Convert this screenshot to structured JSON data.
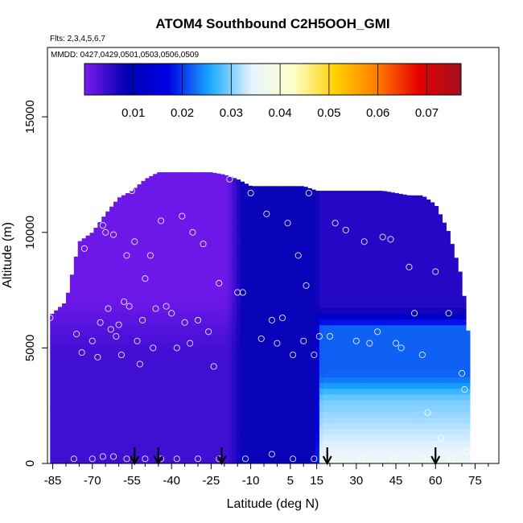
{
  "chart_data": {
    "type": "heatmap",
    "title": "ATOM4 Southbound C2H5OOH_GMI",
    "flights_note": "Flts: 2,3,4,5,6,7",
    "dates_note": "MMDD: 0427,0429,0501,0503,0506,0509",
    "xlabel": "Latitude (deg N)",
    "ylabel": "Altitude (m)",
    "xlim": [
      -87,
      84
    ],
    "ylim": [
      0,
      18000
    ],
    "x_ticks": [
      -85,
      -70,
      -55,
      -40,
      -25,
      -10,
      5,
      15,
      30,
      45,
      60,
      75
    ],
    "x_minor_ticks": [
      -80,
      -75,
      -65,
      -60,
      -50,
      -45,
      -35,
      -30,
      -20,
      -15,
      -5,
      0,
      10,
      20,
      25,
      35,
      40,
      50,
      55,
      65,
      70,
      80
    ],
    "y_ticks": [
      0,
      5000,
      10000,
      15000
    ],
    "colorbar": {
      "min": 0.0,
      "max": 0.077,
      "ticks": [
        0.01,
        0.02,
        0.03,
        0.04,
        0.05,
        0.06,
        0.07
      ],
      "tick_labels": [
        "0.01",
        "0.02",
        "0.03",
        "0.04",
        "0.05",
        "0.06",
        "0.07"
      ],
      "color_stops": [
        "#7b1bf0",
        "#0000b4",
        "#0000e6",
        "#1aaaff",
        "#e6f4ff",
        "#ffffc8",
        "#ffd000",
        "#ff7a00",
        "#e60000",
        "#a01020"
      ]
    },
    "grid": false,
    "curtain_latitudes": [
      -86,
      -80,
      -75,
      -70,
      -65,
      -60,
      -55,
      -50,
      -45,
      -40,
      -35,
      -30,
      -25,
      -20,
      -15,
      -10,
      -5,
      0,
      5,
      10,
      15,
      20,
      25,
      30,
      35,
      40,
      45,
      50,
      55,
      60,
      65,
      70,
      73
    ],
    "curtain_top_altitude_m": [
      6400,
      7000,
      9600,
      10000,
      10800,
      11500,
      11800,
      12300,
      12600,
      12600,
      12600,
      12600,
      12600,
      12500,
      12300,
      12000,
      12000,
      12000,
      12000,
      12000,
      11800,
      11800,
      11800,
      11800,
      11800,
      11800,
      11700,
      11600,
      11600,
      11200,
      10000,
      8000,
      5000
    ],
    "concentration_regimes": [
      {
        "name": "southern_upper",
        "lat_range": [
          -86,
          -20
        ],
        "alt_range": [
          6000,
          12600
        ],
        "value": 0.001
      },
      {
        "name": "southern_lower",
        "lat_range": [
          -86,
          -20
        ],
        "alt_range": [
          0,
          6000
        ],
        "value": 0.004
      },
      {
        "name": "tropical_column",
        "lat_range": [
          -20,
          15
        ],
        "alt_range": [
          0,
          12000
        ],
        "value": 0.008
      },
      {
        "name": "northern_upper",
        "lat_range": [
          15,
          73
        ],
        "alt_range": [
          6000,
          12000
        ],
        "value": 0.006
      },
      {
        "name": "northern_midtrop",
        "lat_range": [
          15,
          73
        ],
        "alt_range": [
          2500,
          6000
        ],
        "value": 0.022
      },
      {
        "name": "northern_boundary_layer",
        "lat_range": [
          15,
          73
        ],
        "alt_range": [
          0,
          2500
        ],
        "value": 0.036
      }
    ],
    "sample_points": [
      {
        "lat": -86,
        "alt": 6300
      },
      {
        "lat": -84,
        "alt": 9500
      },
      {
        "lat": -81,
        "alt": 9500
      },
      {
        "lat": -76,
        "alt": 5600
      },
      {
        "lat": -74,
        "alt": 4800
      },
      {
        "lat": -73,
        "alt": 9300
      },
      {
        "lat": -70,
        "alt": 5300
      },
      {
        "lat": -68,
        "alt": 4600
      },
      {
        "lat": -67,
        "alt": 6100
      },
      {
        "lat": -66,
        "alt": 10300
      },
      {
        "lat": -65,
        "alt": 10000
      },
      {
        "lat": -64,
        "alt": 6700
      },
      {
        "lat": -63,
        "alt": 5800
      },
      {
        "lat": -62,
        "alt": 9900
      },
      {
        "lat": -61,
        "alt": 5500
      },
      {
        "lat": -60,
        "alt": 6000
      },
      {
        "lat": -59,
        "alt": 4700
      },
      {
        "lat": -58,
        "alt": 7000
      },
      {
        "lat": -57,
        "alt": 9000
      },
      {
        "lat": -56,
        "alt": 6800
      },
      {
        "lat": -55,
        "alt": 11800
      },
      {
        "lat": -54,
        "alt": 9600
      },
      {
        "lat": -53,
        "alt": 5300
      },
      {
        "lat": -52,
        "alt": 4300
      },
      {
        "lat": -51,
        "alt": 6200
      },
      {
        "lat": -50,
        "alt": 8000
      },
      {
        "lat": -48,
        "alt": 9000
      },
      {
        "lat": -47,
        "alt": 5000
      },
      {
        "lat": -46,
        "alt": 6700
      },
      {
        "lat": -44,
        "alt": 10500
      },
      {
        "lat": -42,
        "alt": 6800
      },
      {
        "lat": -40,
        "alt": 6500
      },
      {
        "lat": -38,
        "alt": 5000
      },
      {
        "lat": -36,
        "alt": 10700
      },
      {
        "lat": -35,
        "alt": 6100
      },
      {
        "lat": -33,
        "alt": 5200
      },
      {
        "lat": -32,
        "alt": 10000
      },
      {
        "lat": -30,
        "alt": 6200
      },
      {
        "lat": -28,
        "alt": 9500
      },
      {
        "lat": -26,
        "alt": 5700
      },
      {
        "lat": -24,
        "alt": 4200
      },
      {
        "lat": -22,
        "alt": 7800
      },
      {
        "lat": -18,
        "alt": 12300
      },
      {
        "lat": -15,
        "alt": 7400
      },
      {
        "lat": -13,
        "alt": 7400
      },
      {
        "lat": -10,
        "alt": 11700
      },
      {
        "lat": -6,
        "alt": 5400
      },
      {
        "lat": -4,
        "alt": 10800
      },
      {
        "lat": -2,
        "alt": 6200
      },
      {
        "lat": 0,
        "alt": 5200
      },
      {
        "lat": 2,
        "alt": 6300
      },
      {
        "lat": 4,
        "alt": 10400
      },
      {
        "lat": 6,
        "alt": 4700
      },
      {
        "lat": 8,
        "alt": 9000
      },
      {
        "lat": 10,
        "alt": 5300
      },
      {
        "lat": 11,
        "alt": 7700
      },
      {
        "lat": 12,
        "alt": 11700
      },
      {
        "lat": 14,
        "alt": 4700
      },
      {
        "lat": 16,
        "alt": 5500
      },
      {
        "lat": 20,
        "alt": 5500
      },
      {
        "lat": 22,
        "alt": 10400
      },
      {
        "lat": 26,
        "alt": 10100
      },
      {
        "lat": 30,
        "alt": 5300
      },
      {
        "lat": 33,
        "alt": 9600
      },
      {
        "lat": 35,
        "alt": 5200
      },
      {
        "lat": 38,
        "alt": 5700
      },
      {
        "lat": 40,
        "alt": 9800
      },
      {
        "lat": 43,
        "alt": 9700
      },
      {
        "lat": 45,
        "alt": 5200
      },
      {
        "lat": 47,
        "alt": 5000
      },
      {
        "lat": 50,
        "alt": 8500
      },
      {
        "lat": 52,
        "alt": 6500
      },
      {
        "lat": 55,
        "alt": 4700
      },
      {
        "lat": 57,
        "alt": 2200
      },
      {
        "lat": 60,
        "alt": 8300
      },
      {
        "lat": 62,
        "alt": 1100
      },
      {
        "lat": 65,
        "alt": 6500
      },
      {
        "lat": 68,
        "alt": 11400
      },
      {
        "lat": 70,
        "alt": 3900
      },
      {
        "lat": 71,
        "alt": 3200
      },
      {
        "lat": 72,
        "alt": 500
      },
      {
        "lat": -77,
        "alt": 200
      },
      {
        "lat": -70,
        "alt": 200
      },
      {
        "lat": -66,
        "alt": 300
      },
      {
        "lat": -62,
        "alt": 300
      },
      {
        "lat": -57,
        "alt": 200
      },
      {
        "lat": -50,
        "alt": 200
      },
      {
        "lat": -44,
        "alt": 200
      },
      {
        "lat": -38,
        "alt": 200
      },
      {
        "lat": -30,
        "alt": 200
      },
      {
        "lat": -22,
        "alt": 200
      },
      {
        "lat": -12,
        "alt": 200
      },
      {
        "lat": -2,
        "alt": 400
      },
      {
        "lat": 6,
        "alt": 200
      },
      {
        "lat": 14,
        "alt": 200
      },
      {
        "lat": 22,
        "alt": 200
      },
      {
        "lat": 32,
        "alt": 200
      },
      {
        "lat": 44,
        "alt": 200
      },
      {
        "lat": 55,
        "alt": 200
      },
      {
        "lat": 66,
        "alt": 200
      }
    ],
    "marker_latitudes": [
      -54,
      -45,
      -21,
      19,
      60
    ]
  }
}
